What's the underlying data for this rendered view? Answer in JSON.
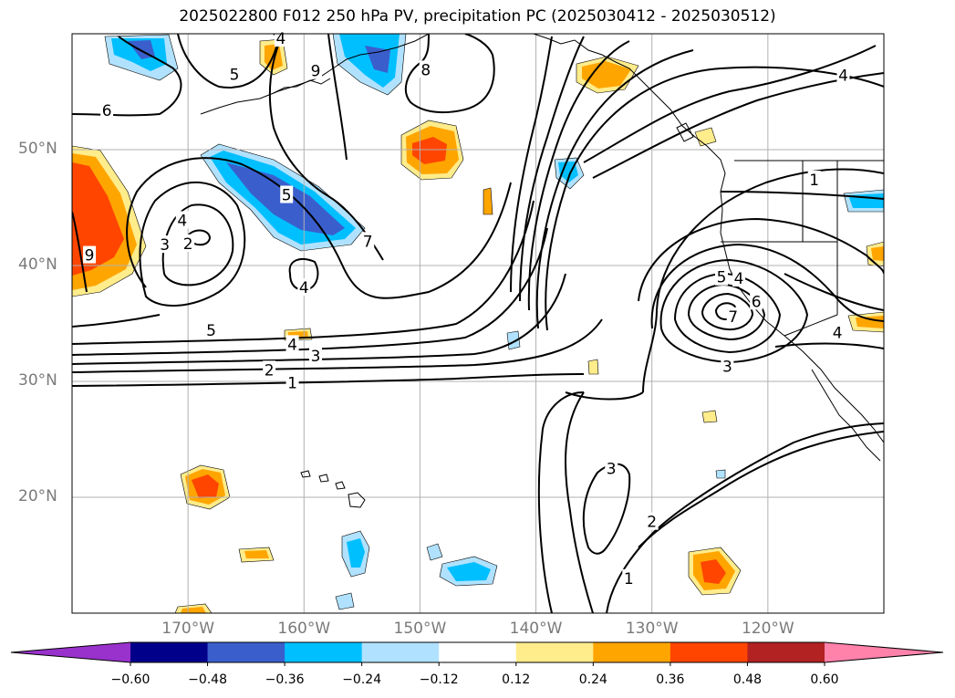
{
  "title": "2025022800 F012 250 hPa PV, precipitation PC (2025030412 - 2025030512)",
  "map": {
    "lon_range": [
      -180,
      -110
    ],
    "lat_range": [
      10,
      60
    ],
    "lat_ticks": [
      {
        "value": 20,
        "label": "20°N"
      },
      {
        "value": 30,
        "label": "30°N"
      },
      {
        "value": 40,
        "label": "40°N"
      },
      {
        "value": 50,
        "label": "50°N"
      }
    ],
    "lon_ticks": [
      {
        "value": -170,
        "label": "170°W"
      },
      {
        "value": -160,
        "label": "160°W"
      },
      {
        "value": -150,
        "label": "150°W"
      },
      {
        "value": -140,
        "label": "140°W"
      },
      {
        "value": -130,
        "label": "130°W"
      },
      {
        "value": -120,
        "label": "120°W"
      }
    ],
    "grid": true
  },
  "contour_labels": [
    {
      "text": "4",
      "lon": -162,
      "lat": 59.6
    },
    {
      "text": "5",
      "lon": -166,
      "lat": 56.5
    },
    {
      "text": "9",
      "lon": -159,
      "lat": 56.8
    },
    {
      "text": "8",
      "lon": -149.5,
      "lat": 56.9
    },
    {
      "text": "6",
      "lon": -177,
      "lat": 53.4
    },
    {
      "text": "5",
      "lon": -161.5,
      "lat": 46.1
    },
    {
      "text": "4",
      "lon": -170.5,
      "lat": 43.9
    },
    {
      "text": "3",
      "lon": -172,
      "lat": 41.8
    },
    {
      "text": "2",
      "lon": -170,
      "lat": 41.9
    },
    {
      "text": "9",
      "lon": -178.5,
      "lat": 40.9
    },
    {
      "text": "7",
      "lon": -154.5,
      "lat": 42.1
    },
    {
      "text": "4",
      "lon": -160,
      "lat": 38.1
    },
    {
      "text": "5",
      "lon": -168,
      "lat": 34.4
    },
    {
      "text": "4",
      "lon": -161,
      "lat": 33.2
    },
    {
      "text": "3",
      "lon": -159,
      "lat": 32.2
    },
    {
      "text": "2",
      "lon": -163,
      "lat": 31.0
    },
    {
      "text": "1",
      "lon": -161,
      "lat": 29.9
    },
    {
      "text": "4",
      "lon": -113.5,
      "lat": 56.4
    },
    {
      "text": "1",
      "lon": -116,
      "lat": 47.4
    },
    {
      "text": "5",
      "lon": -124,
      "lat": 39.0
    },
    {
      "text": "4",
      "lon": -122.5,
      "lat": 38.9
    },
    {
      "text": "6",
      "lon": -121,
      "lat": 36.9
    },
    {
      "text": "7",
      "lon": -123,
      "lat": 35.6
    },
    {
      "text": "4",
      "lon": -114,
      "lat": 34.2
    },
    {
      "text": "3",
      "lon": -123.5,
      "lat": 31.3
    },
    {
      "text": "3",
      "lon": -133.5,
      "lat": 22.5
    },
    {
      "text": "2",
      "lon": -130,
      "lat": 17.9
    },
    {
      "text": "1",
      "lon": -132,
      "lat": 13.0
    }
  ],
  "colorbar": {
    "levels": [
      "−0.60",
      "−0.48",
      "−0.36",
      "−0.24",
      "−0.12",
      "0.12",
      "0.24",
      "0.36",
      "0.48",
      "0.60"
    ],
    "colors": [
      "#9932cc",
      "#00008b",
      "#3a5fcd",
      "#00bfff",
      "#b0e2ff",
      "#ffffff",
      "#ffec8b",
      "#ffa500",
      "#ff4500",
      "#b22222",
      "#ff82ab"
    ]
  }
}
